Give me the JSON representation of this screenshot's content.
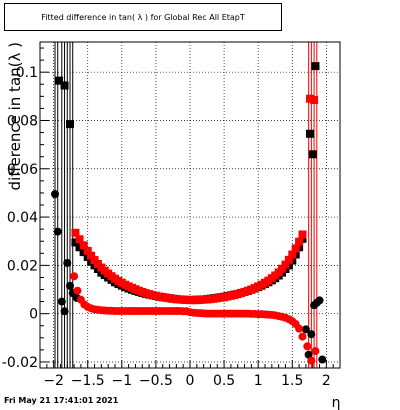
{
  "title": "Fitted difference in tan( λ ) for Global Rec All EtapT",
  "footer": "Fri May 21 17:41:01 2021",
  "chart_data": {
    "type": "scatter",
    "title": "Fitted difference in tan( λ ) for Global Rec All EtapT",
    "xlabel": "η",
    "ylabel": "difference in tan(λ )",
    "xlim": [
      -2.2,
      2.2
    ],
    "ylim": [
      -0.0225,
      0.1125
    ],
    "xticks": [
      -2,
      -1.5,
      -1,
      -0.5,
      0,
      0.5,
      1,
      1.5,
      2
    ],
    "xtick_labels": [
      "−2",
      "−1.5",
      "−1",
      "−0.5",
      "0",
      "0.5",
      "1",
      "1.5",
      "2"
    ],
    "yticks": [
      -0.02,
      0,
      0.02,
      0.04,
      0.06,
      0.08,
      0.1
    ],
    "ytick_labels": [
      "-0.02",
      "0",
      "0.02",
      "0.04",
      "0.06",
      "0.08",
      "0.1"
    ],
    "grid": true,
    "series": [
      {
        "color": "#000000",
        "marker": "square",
        "points": [
          [
            -1.92,
            0.0965
          ],
          [
            -1.84,
            0.0945
          ],
          [
            -1.76,
            0.0785
          ],
          [
            -1.68,
            0.0295
          ],
          [
            -1.62,
            0.0275
          ],
          [
            -1.56,
            0.0255
          ],
          [
            -1.5,
            0.0235
          ],
          [
            -1.45,
            0.0215
          ],
          [
            -1.4,
            0.02
          ],
          [
            -1.35,
            0.0185
          ],
          [
            -1.3,
            0.017
          ],
          [
            -1.25,
            0.016
          ],
          [
            -1.2,
            0.015
          ],
          [
            -1.15,
            0.014
          ],
          [
            -1.1,
            0.013
          ],
          [
            -1.05,
            0.0123
          ],
          [
            -1.0,
            0.0116
          ],
          [
            -0.95,
            0.011
          ],
          [
            -0.9,
            0.0104
          ],
          [
            -0.85,
            0.0099
          ],
          [
            -0.8,
            0.0094
          ],
          [
            -0.75,
            0.009
          ],
          [
            -0.7,
            0.0086
          ],
          [
            -0.65,
            0.0082
          ],
          [
            -0.6,
            0.0079
          ],
          [
            -0.55,
            0.0076
          ],
          [
            -0.5,
            0.0073
          ],
          [
            -0.45,
            0.007
          ],
          [
            -0.4,
            0.0068
          ],
          [
            -0.35,
            0.0066
          ],
          [
            -0.3,
            0.0064
          ],
          [
            -0.25,
            0.0062
          ],
          [
            -0.2,
            0.006
          ],
          [
            -0.15,
            0.0059
          ],
          [
            -0.1,
            0.0058
          ],
          [
            -0.05,
            0.0057
          ],
          [
            0.0,
            0.0057
          ],
          [
            0.05,
            0.0057
          ],
          [
            0.1,
            0.0058
          ],
          [
            0.15,
            0.0058
          ],
          [
            0.2,
            0.0059
          ],
          [
            0.25,
            0.006
          ],
          [
            0.3,
            0.0062
          ],
          [
            0.35,
            0.0064
          ],
          [
            0.4,
            0.0066
          ],
          [
            0.45,
            0.0068
          ],
          [
            0.5,
            0.007
          ],
          [
            0.55,
            0.0073
          ],
          [
            0.6,
            0.0076
          ],
          [
            0.65,
            0.0079
          ],
          [
            0.7,
            0.0082
          ],
          [
            0.75,
            0.0086
          ],
          [
            0.8,
            0.009
          ],
          [
            0.85,
            0.0094
          ],
          [
            0.9,
            0.0099
          ],
          [
            0.95,
            0.0104
          ],
          [
            1.0,
            0.011
          ],
          [
            1.05,
            0.0116
          ],
          [
            1.1,
            0.0123
          ],
          [
            1.15,
            0.013
          ],
          [
            1.2,
            0.0138
          ],
          [
            1.25,
            0.0147
          ],
          [
            1.3,
            0.0158
          ],
          [
            1.35,
            0.017
          ],
          [
            1.4,
            0.0185
          ],
          [
            1.45,
            0.02
          ],
          [
            1.5,
            0.022
          ],
          [
            1.55,
            0.0245
          ],
          [
            1.6,
            0.0275
          ],
          [
            1.65,
            0.031
          ],
          [
            1.76,
            0.0745
          ],
          [
            1.8,
            0.066
          ],
          [
            1.84,
            0.1025
          ]
        ]
      },
      {
        "color": "#ff0000",
        "marker": "square",
        "points": [
          [
            -1.68,
            0.0335
          ],
          [
            -1.62,
            0.0308
          ],
          [
            -1.56,
            0.0283
          ],
          [
            -1.5,
            0.026
          ],
          [
            -1.45,
            0.024
          ],
          [
            -1.4,
            0.0222
          ],
          [
            -1.35,
            0.0206
          ],
          [
            -1.3,
            0.0191
          ],
          [
            -1.25,
            0.0178
          ],
          [
            -1.2,
            0.0166
          ],
          [
            -1.15,
            0.0155
          ],
          [
            -1.1,
            0.0145
          ],
          [
            -1.05,
            0.0136
          ],
          [
            -1.0,
            0.0128
          ],
          [
            -0.95,
            0.012
          ],
          [
            -0.9,
            0.0113
          ],
          [
            -0.85,
            0.0107
          ],
          [
            -0.8,
            0.0101
          ],
          [
            -0.75,
            0.0095
          ],
          [
            -0.7,
            0.009
          ],
          [
            -0.65,
            0.0085
          ],
          [
            -0.6,
            0.0081
          ],
          [
            -0.55,
            0.0077
          ],
          [
            -0.5,
            0.0074
          ],
          [
            -0.45,
            0.0071
          ],
          [
            -0.4,
            0.0068
          ],
          [
            -0.35,
            0.0066
          ],
          [
            -0.3,
            0.0064
          ],
          [
            -0.25,
            0.0062
          ],
          [
            -0.2,
            0.006
          ],
          [
            -0.15,
            0.0059
          ],
          [
            -0.1,
            0.0058
          ],
          [
            -0.05,
            0.0057
          ],
          [
            0.0,
            0.0056
          ],
          [
            0.05,
            0.0056
          ],
          [
            0.1,
            0.0056
          ],
          [
            0.15,
            0.0057
          ],
          [
            0.2,
            0.0058
          ],
          [
            0.25,
            0.0059
          ],
          [
            0.3,
            0.006
          ],
          [
            0.35,
            0.0062
          ],
          [
            0.4,
            0.0064
          ],
          [
            0.45,
            0.0066
          ],
          [
            0.5,
            0.0068
          ],
          [
            0.55,
            0.0071
          ],
          [
            0.6,
            0.0074
          ],
          [
            0.65,
            0.0077
          ],
          [
            0.7,
            0.0081
          ],
          [
            0.75,
            0.0085
          ],
          [
            0.8,
            0.009
          ],
          [
            0.85,
            0.0095
          ],
          [
            0.9,
            0.01
          ],
          [
            0.95,
            0.0106
          ],
          [
            1.0,
            0.0113
          ],
          [
            1.05,
            0.012
          ],
          [
            1.1,
            0.0128
          ],
          [
            1.15,
            0.0137
          ],
          [
            1.2,
            0.0147
          ],
          [
            1.25,
            0.0158
          ],
          [
            1.3,
            0.0171
          ],
          [
            1.35,
            0.0186
          ],
          [
            1.4,
            0.0203
          ],
          [
            1.45,
            0.0223
          ],
          [
            1.5,
            0.0245
          ],
          [
            1.55,
            0.027
          ],
          [
            1.6,
            0.0298
          ],
          [
            1.65,
            0.0328
          ],
          [
            1.76,
            0.089
          ],
          [
            1.82,
            0.0885
          ]
        ]
      },
      {
        "color": "#000000",
        "marker": "circle",
        "points": [
          [
            -1.98,
            0.0495
          ],
          [
            -1.94,
            0.034
          ],
          [
            -1.88,
            0.005
          ],
          [
            -1.84,
            0.001
          ],
          [
            -1.8,
            0.021
          ],
          [
            -1.76,
            0.0115
          ],
          [
            -1.72,
            0.0085
          ],
          [
            -1.66,
            0.0065
          ],
          [
            1.7,
            -0.0065
          ],
          [
            1.74,
            -0.017
          ],
          [
            1.78,
            -0.0085
          ],
          [
            1.82,
            0.0035
          ],
          [
            1.86,
            0.0045
          ],
          [
            1.9,
            0.0055
          ],
          [
            1.94,
            -0.019
          ]
        ]
      },
      {
        "color": "#ff0000",
        "marker": "circle",
        "points": [
          [
            -1.7,
            0.0155
          ],
          [
            -1.65,
            0.0095
          ],
          [
            -1.6,
            0.0058
          ],
          [
            -1.55,
            0.0038
          ],
          [
            -1.5,
            0.0028
          ],
          [
            -1.45,
            0.0022
          ],
          [
            -1.4,
            0.0018
          ],
          [
            -1.35,
            0.0016
          ],
          [
            -1.3,
            0.0014
          ],
          [
            -1.25,
            0.0013
          ],
          [
            -1.2,
            0.0012
          ],
          [
            -1.15,
            0.0012
          ],
          [
            -1.1,
            0.0011
          ],
          [
            -1.05,
            0.0011
          ],
          [
            -1.0,
            0.0011
          ],
          [
            -0.95,
            0.0011
          ],
          [
            -0.9,
            0.0011
          ],
          [
            -0.85,
            0.0011
          ],
          [
            -0.8,
            0.0011
          ],
          [
            -0.75,
            0.0011
          ],
          [
            -0.7,
            0.0011
          ],
          [
            -0.65,
            0.0011
          ],
          [
            -0.6,
            0.0011
          ],
          [
            -0.55,
            0.0011
          ],
          [
            -0.5,
            0.0011
          ],
          [
            -0.45,
            0.0011
          ],
          [
            -0.4,
            0.0011
          ],
          [
            -0.35,
            0.0011
          ],
          [
            -0.3,
            0.0011
          ],
          [
            -0.25,
            0.0011
          ],
          [
            -0.2,
            0.0011
          ],
          [
            -0.15,
            0.0011
          ],
          [
            -0.1,
            0.001
          ],
          [
            -0.05,
            0.001
          ],
          [
            0.0,
            0.0006
          ],
          [
            0.05,
            0.0004
          ],
          [
            0.1,
            0.0003
          ],
          [
            0.15,
            0.0002
          ],
          [
            0.2,
            0.0001
          ],
          [
            0.25,
            0.0
          ],
          [
            0.3,
            0.0
          ],
          [
            0.35,
            0.0
          ],
          [
            0.4,
            0.0
          ],
          [
            0.45,
            0.0
          ],
          [
            0.5,
            0.0
          ],
          [
            0.55,
            0.0
          ],
          [
            0.6,
            0.0
          ],
          [
            0.65,
            0.0
          ],
          [
            0.7,
            0.0
          ],
          [
            0.75,
            0.0
          ],
          [
            0.8,
            0.0
          ],
          [
            0.85,
            0.0
          ],
          [
            0.9,
            -0.0001
          ],
          [
            0.95,
            -0.0001
          ],
          [
            1.0,
            -0.0002
          ],
          [
            1.05,
            -0.0002
          ],
          [
            1.1,
            -0.0003
          ],
          [
            1.15,
            -0.0004
          ],
          [
            1.2,
            -0.0005
          ],
          [
            1.25,
            -0.0007
          ],
          [
            1.3,
            -0.001
          ],
          [
            1.35,
            -0.0013
          ],
          [
            1.4,
            -0.0017
          ],
          [
            1.45,
            -0.0023
          ],
          [
            1.5,
            -0.0031
          ],
          [
            1.55,
            -0.0043
          ],
          [
            1.6,
            -0.0062
          ],
          [
            1.65,
            -0.0095
          ],
          [
            1.72,
            -0.0135
          ],
          [
            1.78,
            -0.0195
          ],
          [
            1.84,
            -0.0155
          ]
        ]
      }
    ]
  }
}
